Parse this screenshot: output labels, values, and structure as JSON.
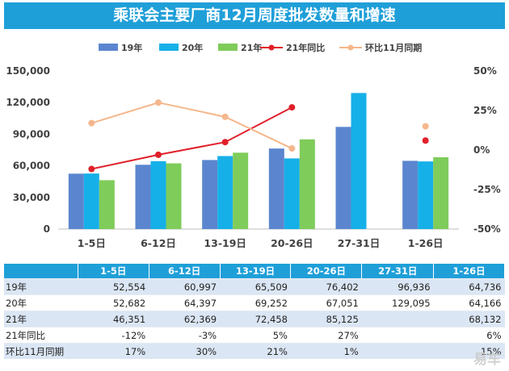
{
  "title": "乘联会主要厂商12月周度批发数量和增速",
  "watermark": "易车",
  "colors": {
    "title_bg": "#1f9fd8",
    "s19": "#5b86cf",
    "s20": "#16b0e8",
    "s21": "#7fcc5a",
    "yoy": "#e0202a",
    "mom": "#f5b78c"
  },
  "chart_data": {
    "type": "bar",
    "categories": [
      "1-5日",
      "6-12日",
      "13-19日",
      "20-26日",
      "27-31日",
      "1-26日"
    ],
    "series": [
      {
        "name": "19年",
        "kind": "bar",
        "axis": "left",
        "values": [
          52554,
          60997,
          65509,
          76402,
          96936,
          64736
        ]
      },
      {
        "name": "20年",
        "kind": "bar",
        "axis": "left",
        "values": [
          52682,
          64397,
          69252,
          67051,
          129095,
          64166
        ]
      },
      {
        "name": "21年",
        "kind": "bar",
        "axis": "left",
        "values": [
          46351,
          62369,
          72458,
          85125,
          null,
          68132
        ]
      },
      {
        "name": "21年同比",
        "kind": "line",
        "axis": "right",
        "values": [
          -12,
          -3,
          5,
          27,
          null,
          6
        ]
      },
      {
        "name": "环比11月同期",
        "kind": "line",
        "axis": "right",
        "values": [
          17,
          30,
          21,
          1,
          null,
          15
        ]
      }
    ],
    "y_left": {
      "min": 0,
      "max": 150000,
      "ticks": [
        "0",
        "30,000",
        "60,000",
        "90,000",
        "120,000",
        "150,000"
      ]
    },
    "y_right": {
      "min": -50,
      "max": 50,
      "ticks": [
        "-50%",
        "-25%",
        "0%",
        "25%",
        "50%"
      ]
    },
    "legend_position": "top",
    "grid": false
  },
  "table": {
    "columns": [
      "",
      "1-5日",
      "6-12日",
      "13-19日",
      "20-26日",
      "27-31日",
      "1-26日"
    ],
    "rows": [
      {
        "label": "19年",
        "cells": [
          "52,554",
          "60,997",
          "65,509",
          "76,402",
          "96,936",
          "64,736"
        ]
      },
      {
        "label": "20年",
        "cells": [
          "52,682",
          "64,397",
          "69,252",
          "67,051",
          "129,095",
          "64,166"
        ]
      },
      {
        "label": "21年",
        "cells": [
          "46,351",
          "62,369",
          "72,458",
          "85,125",
          "",
          "68,132"
        ]
      },
      {
        "label": "21年同比",
        "cells": [
          "-12%",
          "-3%",
          "5%",
          "27%",
          "",
          "6%"
        ]
      },
      {
        "label": "环比11月同期",
        "cells": [
          "17%",
          "30%",
          "21%",
          "1%",
          "",
          "15%"
        ]
      }
    ]
  }
}
